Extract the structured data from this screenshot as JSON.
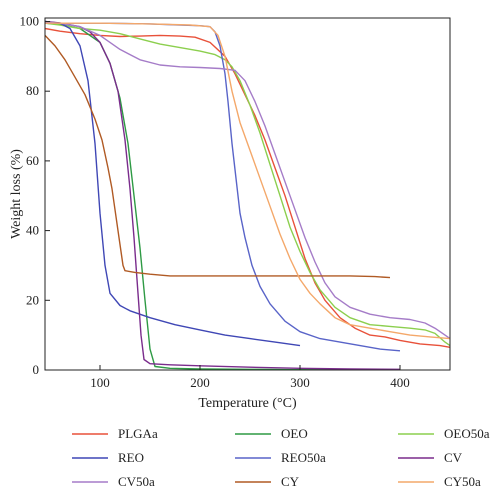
{
  "chart_data": {
    "type": "line",
    "title": "",
    "xlabel": "Temperature (°C)",
    "ylabel": "Weight loss (%)",
    "xlim": [
      45,
      450
    ],
    "ylim": [
      0,
      101
    ],
    "xticks": [
      100,
      200,
      300,
      400
    ],
    "yticks": [
      0,
      20,
      40,
      60,
      80,
      100
    ],
    "grid": false,
    "legend_position": "bottom",
    "series": [
      {
        "name": "PLGAa",
        "color": "#e8513a",
        "points": [
          [
            45,
            98
          ],
          [
            60,
            97.2
          ],
          [
            80,
            96.5
          ],
          [
            100,
            96
          ],
          [
            120,
            95.7
          ],
          [
            140,
            95.8
          ],
          [
            160,
            96
          ],
          [
            180,
            95.8
          ],
          [
            195,
            95.5
          ],
          [
            210,
            94
          ],
          [
            225,
            90
          ],
          [
            235,
            85
          ],
          [
            245,
            79
          ],
          [
            255,
            73
          ],
          [
            265,
            66
          ],
          [
            275,
            58
          ],
          [
            285,
            50
          ],
          [
            295,
            41
          ],
          [
            305,
            32
          ],
          [
            315,
            25
          ],
          [
            325,
            20
          ],
          [
            340,
            15
          ],
          [
            355,
            12
          ],
          [
            370,
            10
          ],
          [
            385,
            9.5
          ],
          [
            400,
            8.5
          ],
          [
            420,
            7.5
          ],
          [
            440,
            7
          ],
          [
            450,
            6.5
          ]
        ]
      },
      {
        "name": "OEO",
        "color": "#2e9a44",
        "points": [
          [
            45,
            99.5
          ],
          [
            60,
            99.2
          ],
          [
            80,
            98
          ],
          [
            100,
            94
          ],
          [
            110,
            88
          ],
          [
            120,
            78
          ],
          [
            128,
            65
          ],
          [
            134,
            50
          ],
          [
            140,
            35
          ],
          [
            145,
            20
          ],
          [
            150,
            6
          ],
          [
            155,
            1
          ],
          [
            170,
            0.5
          ],
          [
            200,
            0.3
          ],
          [
            250,
            0.2
          ],
          [
            300,
            0.1
          ],
          [
            400,
            0
          ]
        ]
      },
      {
        "name": "OEO50a",
        "color": "#8ccf4e",
        "points": [
          [
            45,
            99.5
          ],
          [
            60,
            99
          ],
          [
            80,
            98
          ],
          [
            100,
            97.5
          ],
          [
            120,
            96.5
          ],
          [
            140,
            95
          ],
          [
            160,
            93.5
          ],
          [
            180,
            92.5
          ],
          [
            200,
            91.5
          ],
          [
            215,
            90.5
          ],
          [
            225,
            89
          ],
          [
            232,
            87
          ],
          [
            240,
            83
          ],
          [
            250,
            76
          ],
          [
            260,
            68
          ],
          [
            270,
            59
          ],
          [
            280,
            50
          ],
          [
            290,
            41
          ],
          [
            300,
            34
          ],
          [
            310,
            28
          ],
          [
            320,
            23
          ],
          [
            335,
            18
          ],
          [
            350,
            15
          ],
          [
            370,
            13
          ],
          [
            390,
            12.5
          ],
          [
            410,
            12
          ],
          [
            425,
            11.5
          ],
          [
            435,
            10.5
          ],
          [
            445,
            8
          ],
          [
            450,
            7
          ]
        ]
      },
      {
        "name": "REO",
        "color": "#3f47b5",
        "points": [
          [
            45,
            100
          ],
          [
            60,
            99.5
          ],
          [
            70,
            98
          ],
          [
            80,
            93
          ],
          [
            88,
            83
          ],
          [
            95,
            65
          ],
          [
            100,
            45
          ],
          [
            105,
            30
          ],
          [
            110,
            22
          ],
          [
            120,
            18.5
          ],
          [
            130,
            17
          ],
          [
            150,
            15
          ],
          [
            175,
            13
          ],
          [
            200,
            11.5
          ],
          [
            225,
            10
          ],
          [
            250,
            9
          ],
          [
            275,
            8
          ],
          [
            300,
            7
          ]
        ]
      },
      {
        "name": "REO50a",
        "color": "#5964c8",
        "points": [
          [
            45,
            99.5
          ],
          [
            100,
            99.5
          ],
          [
            150,
            99.3
          ],
          [
            180,
            99
          ],
          [
            200,
            98.8
          ],
          [
            210,
            98.5
          ],
          [
            215,
            97
          ],
          [
            220,
            93
          ],
          [
            225,
            85
          ],
          [
            228,
            77
          ],
          [
            232,
            65
          ],
          [
            236,
            55
          ],
          [
            240,
            45
          ],
          [
            245,
            38
          ],
          [
            252,
            30
          ],
          [
            260,
            24
          ],
          [
            270,
            19
          ],
          [
            285,
            14
          ],
          [
            300,
            11
          ],
          [
            320,
            9
          ],
          [
            340,
            8
          ],
          [
            360,
            7
          ],
          [
            380,
            6
          ],
          [
            400,
            5.5
          ]
        ]
      },
      {
        "name": "CV",
        "color": "#7a2c8c",
        "points": [
          [
            45,
            100
          ],
          [
            60,
            99.6
          ],
          [
            80,
            98.5
          ],
          [
            90,
            97
          ],
          [
            100,
            94
          ],
          [
            110,
            88
          ],
          [
            118,
            80
          ],
          [
            125,
            66
          ],
          [
            130,
            52
          ],
          [
            134,
            38
          ],
          [
            138,
            22
          ],
          [
            141,
            10
          ],
          [
            144,
            3
          ],
          [
            150,
            1.8
          ],
          [
            170,
            1.5
          ],
          [
            200,
            1.2
          ],
          [
            250,
            0.8
          ],
          [
            300,
            0.5
          ],
          [
            350,
            0.3
          ],
          [
            400,
            0.2
          ]
        ]
      },
      {
        "name": "CV50a",
        "color": "#a57cc8",
        "points": [
          [
            45,
            99.8
          ],
          [
            60,
            99.5
          ],
          [
            80,
            98.5
          ],
          [
            100,
            96
          ],
          [
            120,
            92
          ],
          [
            140,
            89
          ],
          [
            160,
            87.5
          ],
          [
            180,
            87
          ],
          [
            200,
            86.8
          ],
          [
            220,
            86.5
          ],
          [
            235,
            86
          ],
          [
            245,
            83
          ],
          [
            255,
            77
          ],
          [
            265,
            70
          ],
          [
            275,
            62
          ],
          [
            285,
            54
          ],
          [
            295,
            46
          ],
          [
            305,
            38
          ],
          [
            315,
            31
          ],
          [
            325,
            25
          ],
          [
            335,
            21
          ],
          [
            350,
            18
          ],
          [
            370,
            16
          ],
          [
            390,
            15
          ],
          [
            410,
            14.5
          ],
          [
            425,
            13.5
          ],
          [
            435,
            12
          ],
          [
            445,
            10
          ],
          [
            450,
            9
          ]
        ]
      },
      {
        "name": "CY",
        "color": "#b05a24",
        "points": [
          [
            45,
            96
          ],
          [
            55,
            93
          ],
          [
            65,
            89
          ],
          [
            75,
            84
          ],
          [
            85,
            79
          ],
          [
            95,
            72
          ],
          [
            102,
            66
          ],
          [
            108,
            58
          ],
          [
            112,
            52
          ],
          [
            116,
            44
          ],
          [
            119,
            38
          ],
          [
            121,
            34
          ],
          [
            123,
            30
          ],
          [
            125,
            28.5
          ],
          [
            135,
            28
          ],
          [
            150,
            27.5
          ],
          [
            170,
            27
          ],
          [
            200,
            27
          ],
          [
            230,
            27
          ],
          [
            250,
            27
          ],
          [
            275,
            27
          ],
          [
            300,
            27
          ],
          [
            325,
            27
          ],
          [
            350,
            27
          ],
          [
            375,
            26.8
          ],
          [
            390,
            26.5
          ]
        ]
      },
      {
        "name": "CY50a",
        "color": "#f4a86a",
        "points": [
          [
            45,
            99.5
          ],
          [
            100,
            99.5
          ],
          [
            150,
            99.3
          ],
          [
            190,
            99
          ],
          [
            210,
            98.5
          ],
          [
            218,
            96
          ],
          [
            225,
            90
          ],
          [
            232,
            80
          ],
          [
            240,
            71
          ],
          [
            250,
            63
          ],
          [
            260,
            55
          ],
          [
            270,
            47
          ],
          [
            280,
            39
          ],
          [
            290,
            32
          ],
          [
            300,
            26
          ],
          [
            310,
            22
          ],
          [
            320,
            19
          ],
          [
            335,
            15
          ],
          [
            350,
            13
          ],
          [
            370,
            12
          ],
          [
            390,
            11
          ],
          [
            410,
            10
          ],
          [
            430,
            9.5
          ],
          [
            450,
            9
          ]
        ]
      }
    ]
  }
}
